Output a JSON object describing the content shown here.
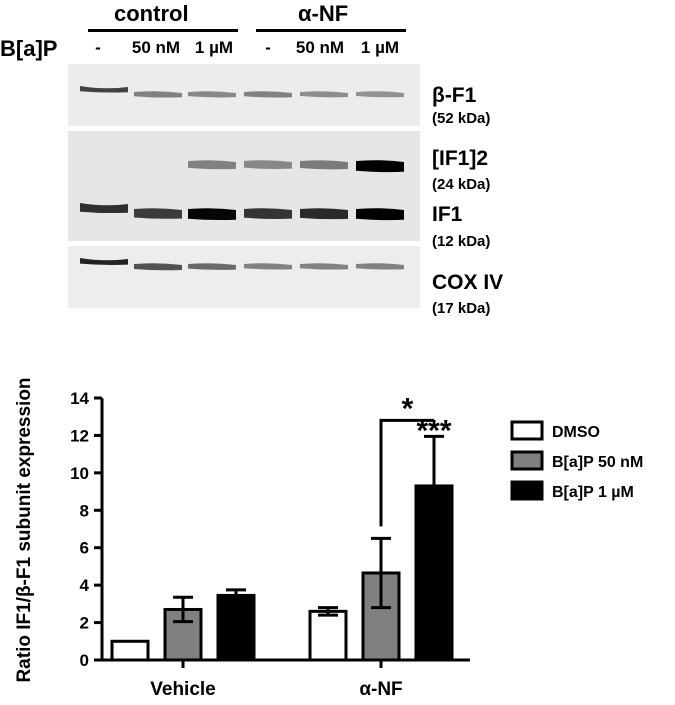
{
  "blot": {
    "group_labels": [
      "control",
      "α-NF"
    ],
    "row_label": "B[a]P",
    "lane_labels": [
      "-",
      "50 nM",
      "1 µM",
      "-",
      "50 nM",
      "1 µM"
    ],
    "bands": [
      {
        "name": "β-F1",
        "size": "(52 kDa)"
      },
      {
        "name": "[IF1]2",
        "size": "(24 kDa)"
      },
      {
        "name": "IF1",
        "size": "(12 kDa)"
      },
      {
        "name": "COX IV",
        "size": "(17 kDa)"
      }
    ],
    "intensities": {
      "beta_f1": [
        0.72,
        0.45,
        0.42,
        0.45,
        0.4,
        0.38
      ],
      "if1_dimer": [
        0.0,
        0.0,
        0.45,
        0.42,
        0.48,
        1.0
      ],
      "if1": [
        0.8,
        0.75,
        0.98,
        0.78,
        0.82,
        1.0
      ],
      "cox_iv": [
        0.85,
        0.65,
        0.55,
        0.45,
        0.45,
        0.45
      ]
    }
  },
  "chart_data": {
    "type": "bar",
    "ylabel": "Ratio IF1/β-F1 subunit expression",
    "ylim": [
      0,
      14
    ],
    "yticks": [
      "0",
      "2",
      "4",
      "6",
      "8",
      "10",
      "12",
      "14"
    ],
    "categories": [
      "Vehicle",
      "α-NF"
    ],
    "series": [
      {
        "name": "DMSO",
        "color": "#ffffff",
        "values": [
          1.0,
          2.6
        ],
        "errors": [
          0,
          0.2
        ]
      },
      {
        "name": "B[a]P 50 nM",
        "color": "#808080",
        "values": [
          2.7,
          4.65
        ],
        "errors": [
          0.65,
          1.85
        ]
      },
      {
        "name": "B[a]P 1 µM",
        "color": "#000000",
        "values": [
          3.45,
          9.3
        ],
        "errors": [
          0.3,
          2.65
        ]
      }
    ],
    "annotations": [
      "*",
      "***"
    ],
    "legend_position": "right"
  }
}
